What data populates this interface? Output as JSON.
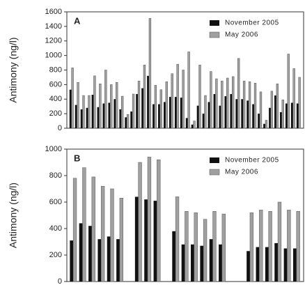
{
  "chart_data": [
    {
      "type": "bar",
      "panel_label": "A",
      "ylabel": "Antimony (ng/l)",
      "legend": "upper right",
      "categories": [
        null,
        null,
        null,
        null,
        null,
        null,
        null,
        null,
        null,
        null,
        null,
        null,
        null,
        null,
        null,
        null,
        null,
        null,
        null,
        null,
        null,
        null,
        null,
        null,
        null,
        null,
        null,
        null,
        null,
        null,
        null,
        null,
        null,
        null,
        null,
        null,
        null,
        null,
        null,
        null,
        null,
        null
      ],
      "series": [
        {
          "name": "November 2005",
          "color": "#111111",
          "values": [
            530,
            320,
            260,
            280,
            460,
            290,
            340,
            350,
            400,
            260,
            150,
            230,
            470,
            550,
            720,
            330,
            330,
            360,
            430,
            430,
            420,
            140,
            50,
            310,
            200,
            360,
            470,
            310,
            440,
            470,
            400,
            400,
            380,
            330,
            200,
            60,
            280,
            450,
            220,
            340,
            350,
            340
          ]
        },
        {
          "name": "May 2006",
          "color": "#a0a0a0",
          "values": [
            830,
            630,
            450,
            450,
            720,
            610,
            800,
            600,
            630,
            440,
            190,
            470,
            650,
            870,
            1510,
            590,
            530,
            640,
            750,
            880,
            800,
            1050,
            100,
            870,
            450,
            780,
            680,
            650,
            690,
            710,
            960,
            650,
            640,
            620,
            500,
            110,
            510,
            610,
            390,
            1020,
            820,
            700
          ]
        }
      ],
      "ylim": [
        0,
        1600
      ],
      "yticks": [
        0,
        200,
        400,
        600,
        800,
        1000,
        1200,
        1400,
        1600
      ]
    },
    {
      "type": "bar",
      "panel_label": "B",
      "ylabel": "Antimony (ng/l)",
      "legend": "upper right",
      "categories": [
        null,
        null,
        null,
        null,
        null,
        null,
        null,
        null,
        null,
        null,
        null,
        null,
        null,
        null,
        null,
        null,
        null,
        null,
        null,
        null,
        null,
        null,
        null,
        null,
        null
      ],
      "series": [
        {
          "name": "November 2005",
          "color": "#111111",
          "values": [
            310,
            440,
            420,
            320,
            340,
            320,
            null,
            640,
            620,
            610,
            null,
            380,
            280,
            280,
            270,
            320,
            280,
            null,
            null,
            230,
            260,
            260,
            290,
            250,
            250
          ]
        },
        {
          "name": "May 2006",
          "color": "#a0a0a0",
          "values": [
            780,
            860,
            790,
            720,
            700,
            630,
            null,
            900,
            940,
            920,
            null,
            640,
            530,
            520,
            470,
            530,
            510,
            null,
            null,
            520,
            540,
            530,
            600,
            540,
            530
          ]
        }
      ],
      "ylim": [
        0,
        1000
      ],
      "yticks": [
        0,
        200,
        400,
        600,
        800,
        1000
      ]
    }
  ]
}
